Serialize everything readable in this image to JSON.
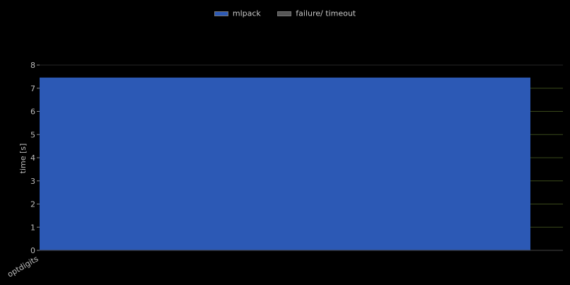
{
  "legend": {
    "items": [
      {
        "label": "mlpack",
        "color": "#2c59b5"
      },
      {
        "label": "failure/ timeout",
        "color": "#555555"
      }
    ]
  },
  "chart_data": {
    "type": "bar",
    "categories": [
      "optdigits"
    ],
    "series": [
      {
        "name": "mlpack",
        "values": [
          7.46
        ],
        "color": "#2c59b5"
      }
    ],
    "title": "",
    "xlabel": "",
    "ylabel": "time [s]",
    "ylim": [
      0,
      8
    ],
    "yticks": [
      0,
      1,
      2,
      3,
      4,
      5,
      6,
      7,
      8
    ],
    "grid": true,
    "grid_color": "#3a4a1a",
    "legend_position": "top-center"
  }
}
